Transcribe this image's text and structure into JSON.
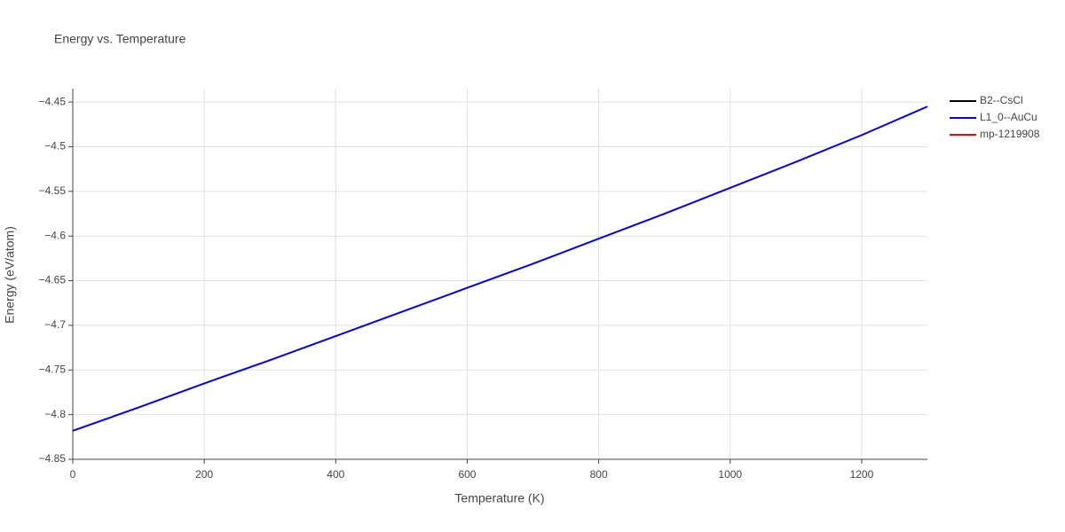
{
  "chart_data": {
    "type": "line",
    "title": "Energy vs. Temperature",
    "x_label": "Temperature (K)",
    "y_label": "Energy (eV/atom)",
    "x": [
      0,
      100,
      200,
      300,
      400,
      500,
      600,
      700,
      800,
      900,
      1000,
      1100,
      1200,
      1300
    ],
    "series": [
      {
        "name": "B2--CsCl",
        "color": "#000000",
        "values": [
          null,
          null,
          null,
          null,
          null,
          null,
          null,
          null,
          null,
          null,
          null,
          null,
          null,
          null
        ]
      },
      {
        "name": "L1_0--AuCu",
        "color": "#0000ff",
        "values": [
          -4.818,
          -4.792,
          -4.765,
          -4.739,
          -4.712,
          -4.685,
          -4.658,
          -4.631,
          -4.603,
          -4.575,
          -4.546,
          -4.517,
          -4.487,
          -4.455
        ]
      },
      {
        "name": "mp-1219908",
        "color": "#ff0000",
        "values": [
          null,
          null,
          null,
          null,
          null,
          null,
          null,
          null,
          null,
          null,
          null,
          null,
          null,
          null
        ]
      }
    ],
    "xlim": [
      0,
      1300
    ],
    "xticks": [
      0,
      200,
      400,
      600,
      800,
      1000,
      1200
    ],
    "ylim": [
      -4.85,
      -4.435
    ],
    "yticks": [
      {
        "value": -4.85,
        "label": "−4.85"
      },
      {
        "value": -4.8,
        "label": "−4.8"
      },
      {
        "value": -4.75,
        "label": "−4.75"
      },
      {
        "value": -4.7,
        "label": "−4.7"
      },
      {
        "value": -4.65,
        "label": "−4.65"
      },
      {
        "value": -4.6,
        "label": "−4.6"
      },
      {
        "value": -4.55,
        "label": "−4.55"
      },
      {
        "value": -4.5,
        "label": "−4.5"
      },
      {
        "value": -4.45,
        "label": "−4.45"
      }
    ],
    "grid": true,
    "legend": "right"
  }
}
